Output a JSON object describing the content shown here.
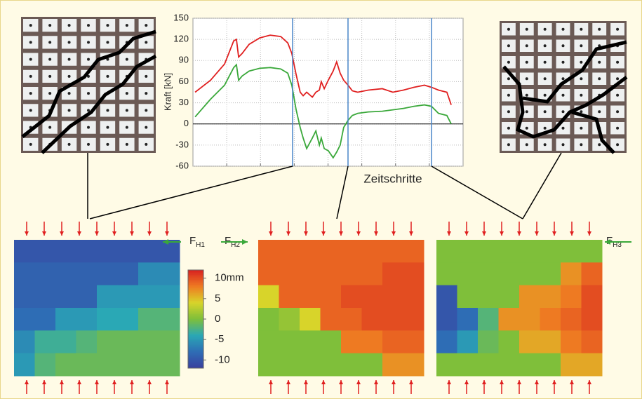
{
  "chart_data": [
    {
      "type": "line",
      "ylabel": "Kraft [kN]",
      "xlabel": "Zeitschritte",
      "xlim": [
        0,
        100
      ],
      "ylim": [
        -60,
        150
      ],
      "yticks": [
        -60,
        -30,
        0,
        30,
        60,
        90,
        120,
        150
      ],
      "grid": true,
      "x": [
        0.8,
        6.5,
        11.7,
        15.1,
        16.1,
        16.9,
        18.2,
        20.8,
        24.7,
        28.6,
        32.5,
        35.1,
        36.6,
        38.2,
        39.7,
        40.8,
        42.1,
        44.2,
        45.5,
        46.8,
        47.5,
        48.6,
        50.1,
        51.9,
        53.2,
        54.5,
        55.8,
        57.4,
        59.0,
        61.0,
        64.9,
        70.1,
        74.0,
        77.9,
        81.8,
        85.7,
        88.3,
        90.9,
        94.0,
        95.6
      ],
      "series": [
        {
          "color": "#e02020",
          "values": [
            45,
            62,
            85,
            118,
            120,
            95,
            100,
            113,
            122,
            126,
            124,
            115,
            100,
            70,
            45,
            40,
            45,
            38,
            45,
            48,
            60,
            50,
            62,
            75,
            88,
            72,
            62,
            55,
            47,
            45,
            48,
            50,
            45,
            48,
            52,
            55,
            52,
            48,
            45,
            27
          ]
        },
        {
          "color": "#3aa83a",
          "values": [
            10,
            35,
            55,
            80,
            84,
            62,
            68,
            75,
            79,
            80,
            78,
            72,
            55,
            20,
            -5,
            -20,
            -35,
            -20,
            -10,
            -30,
            -20,
            -35,
            -38,
            -48,
            -40,
            -30,
            -5,
            5,
            12,
            15,
            17,
            18,
            20,
            22,
            25,
            27,
            25,
            15,
            12,
            0
          ]
        }
      ]
    },
    {
      "type": "heatmap",
      "annotation": {
        "text": "F",
        "subscript": "H1"
      },
      "values": [
        [
          -10,
          -10,
          -10,
          -10,
          -10,
          -10,
          -10,
          -10
        ],
        [
          -9,
          -9,
          -9,
          -9,
          -9,
          -9,
          -6,
          -6
        ],
        [
          -9,
          -9,
          -9,
          -9,
          -5,
          -5,
          -5,
          -5
        ],
        [
          -8,
          -8,
          -5,
          -5,
          -4,
          -4,
          -2,
          -2
        ],
        [
          -6,
          -3,
          -3,
          -2,
          -1,
          -1,
          -1,
          -1
        ],
        [
          -5,
          -2,
          -1,
          -1,
          -1,
          -1,
          -1,
          -1
        ]
      ]
    },
    {
      "type": "heatmap",
      "annotation": {
        "text": "F",
        "subscript": "H2"
      },
      "values": [
        [
          9,
          9,
          9,
          9,
          9,
          9,
          9,
          9
        ],
        [
          9,
          9,
          9,
          9,
          9,
          9,
          10,
          10
        ],
        [
          4,
          9,
          9,
          9,
          10,
          10,
          10,
          10
        ],
        [
          0,
          1,
          4,
          9,
          9,
          10,
          10,
          10
        ],
        [
          0,
          0,
          0,
          0,
          8,
          8,
          9,
          9
        ],
        [
          0,
          0,
          0,
          0,
          0,
          0,
          7,
          7
        ]
      ]
    },
    {
      "type": "heatmap",
      "annotation": {
        "text": "F",
        "subscript": "H3"
      },
      "values": [
        [
          0,
          0,
          0,
          0,
          0,
          0,
          0,
          0
        ],
        [
          0,
          0,
          0,
          0,
          0,
          0,
          7,
          9
        ],
        [
          -10,
          0,
          0,
          0,
          7,
          7,
          8,
          10
        ],
        [
          -10,
          -8,
          -2,
          7,
          7,
          8,
          9,
          10
        ],
        [
          -8,
          -5,
          -1,
          0,
          6,
          6,
          8,
          9
        ],
        [
          0,
          0,
          0,
          0,
          0,
          0,
          6,
          6
        ]
      ]
    },
    {
      "type": "colorbar",
      "zlim": [
        -12,
        12
      ],
      "zticks": [
        {
          "value": 10,
          "label": "10mm"
        },
        5,
        0,
        -5,
        -10
      ]
    }
  ]
}
